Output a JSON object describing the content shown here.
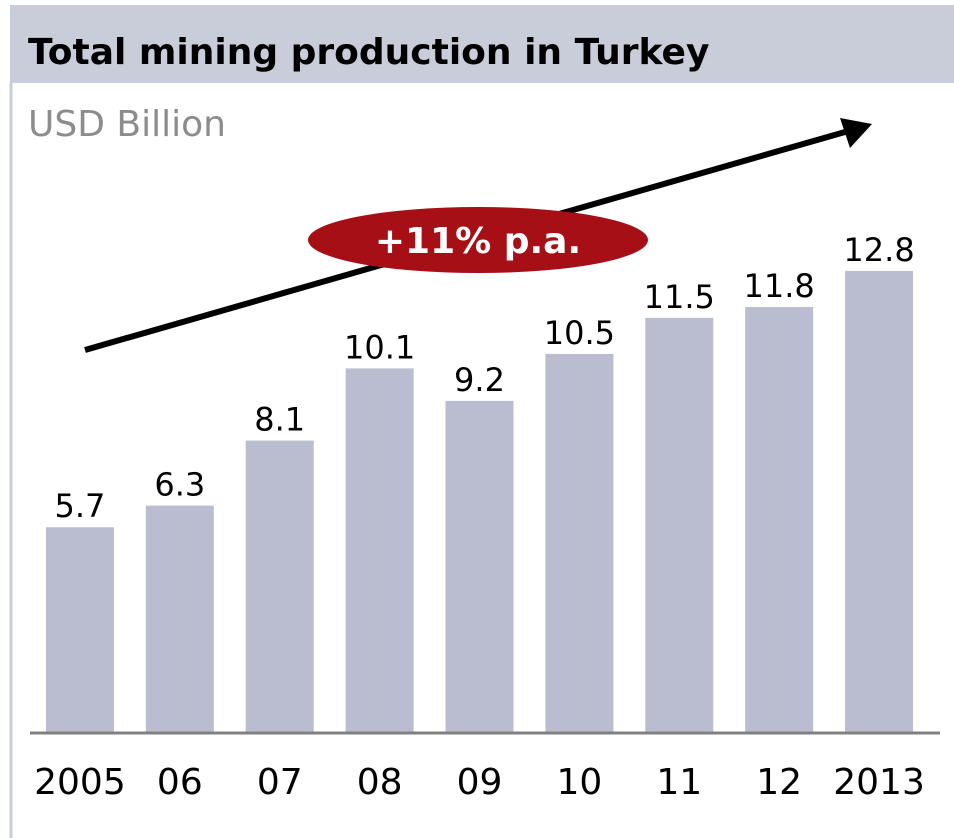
{
  "chart_data": {
    "type": "bar",
    "title": "Total mining production in Turkey",
    "subtitle": "USD Billion",
    "annotation": "+11% p.a.",
    "categories": [
      "2005",
      "06",
      "07",
      "08",
      "09",
      "10",
      "11",
      "12",
      "2013"
    ],
    "values": [
      5.7,
      6.3,
      8.1,
      10.1,
      9.2,
      10.5,
      11.5,
      11.8,
      12.8
    ],
    "color": "#b9bdcf",
    "ylim": [
      0,
      20
    ],
    "grid": false
  }
}
